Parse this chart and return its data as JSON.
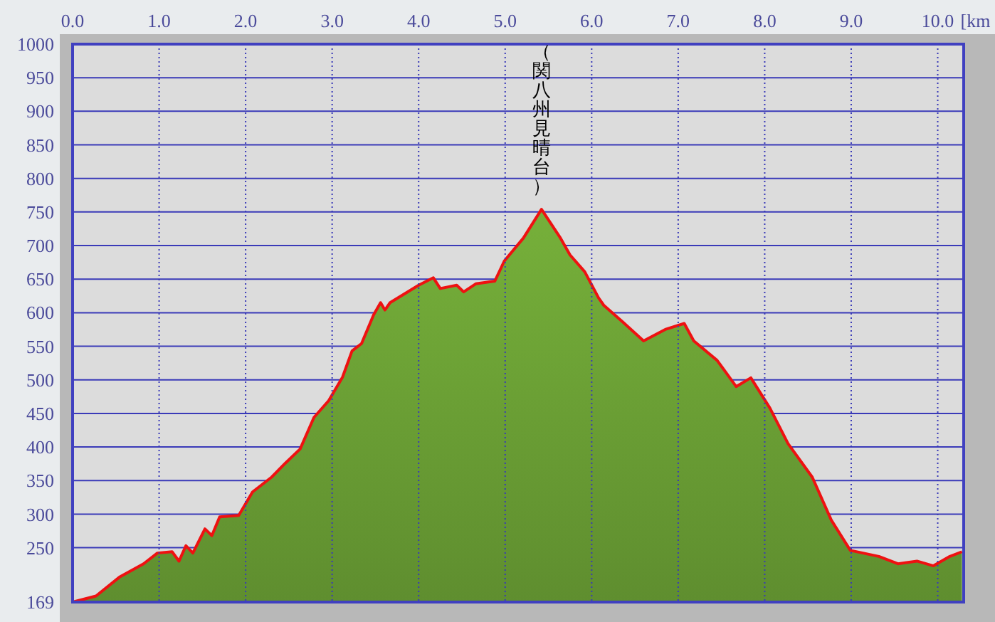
{
  "chart_data": {
    "type": "area",
    "xlabel": "[km",
    "x": [
      0,
      0.27,
      0.54,
      0.82,
      0.98,
      1.15,
      1.23,
      1.31,
      1.39,
      1.53,
      1.61,
      1.7,
      1.92,
      2.08,
      2.3,
      2.46,
      2.63,
      2.79,
      2.96,
      3.12,
      3.23,
      3.34,
      3.48,
      3.56,
      3.61,
      3.67,
      4.0,
      4.17,
      4.25,
      4.44,
      4.52,
      4.66,
      4.88,
      4.99,
      5.21,
      5.42,
      5.64,
      5.75,
      5.92,
      6.08,
      6.14,
      6.36,
      6.6,
      6.85,
      7.07,
      7.18,
      7.45,
      7.67,
      7.84,
      8.06,
      8.27,
      8.55,
      8.77,
      8.99,
      9.32,
      9.54,
      9.76,
      9.95,
      10.14,
      10.28
    ],
    "series": [
      {
        "color": "#6a9e34",
        "values": [
          169,
          178,
          206,
          226,
          242,
          244,
          230,
          253,
          242,
          278,
          268,
          296,
          298,
          333,
          355,
          376,
          397,
          444,
          469,
          504,
          543,
          554,
          597,
          615,
          604,
          615,
          641,
          652,
          636,
          641,
          631,
          643,
          647,
          677,
          711,
          754,
          711,
          686,
          661,
          622,
          611,
          586,
          558,
          575,
          584,
          558,
          529,
          490,
          503,
          458,
          405,
          355,
          291,
          246,
          237,
          226,
          230,
          223,
          237,
          244
        ]
      }
    ],
    "xlim": [
      0,
      10.3
    ],
    "xticks": [
      {
        "value": 0,
        "label": "0.0"
      },
      {
        "value": 1,
        "label": "1.0"
      },
      {
        "value": 2,
        "label": "2.0"
      },
      {
        "value": 3,
        "label": "3.0"
      },
      {
        "value": 4,
        "label": "4.0"
      },
      {
        "value": 5,
        "label": "5.0"
      },
      {
        "value": 6,
        "label": "6.0"
      },
      {
        "value": 7,
        "label": "7.0"
      },
      {
        "value": 8,
        "label": "8.0"
      },
      {
        "value": 9,
        "label": "9.0"
      },
      {
        "value": 10,
        "label": "10.0"
      }
    ],
    "ylim": [
      169,
      1000
    ],
    "yticks": [
      169,
      250,
      300,
      350,
      400,
      450,
      500,
      550,
      600,
      650,
      700,
      750,
      800,
      850,
      900,
      950,
      1000
    ],
    "grid": true,
    "annotations": [
      {
        "text": "（関八州見晴台）",
        "x": 5.42,
        "y": 754
      }
    ]
  }
}
